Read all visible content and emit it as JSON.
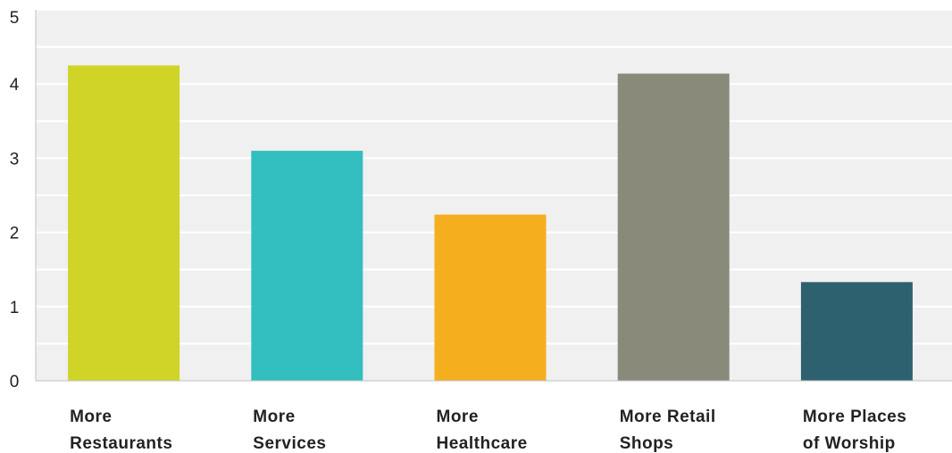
{
  "chart_data": {
    "type": "bar",
    "categories": [
      [
        "More",
        "Restaurants"
      ],
      [
        "More",
        "Services"
      ],
      [
        "More",
        "Healthcare"
      ],
      [
        "More Retail",
        "Shops"
      ],
      [
        "More Places",
        "of Worship"
      ]
    ],
    "values": [
      4.25,
      3.1,
      2.24,
      4.14,
      1.33
    ],
    "title": "",
    "xlabel": "",
    "ylabel": "",
    "ylim": [
      0,
      5
    ],
    "yticks": [
      "0",
      "1",
      "2",
      "3",
      "4",
      "5"
    ],
    "grid": true,
    "minor_grid": true,
    "colors": {
      "bars": [
        "#cfd427",
        "#33bfc0",
        "#f5ae1e",
        "#898a7a",
        "#2e6170"
      ],
      "plot_background": "#f0f0f0",
      "gridline": "#ffffff",
      "axis": "#c0c0c0"
    }
  }
}
